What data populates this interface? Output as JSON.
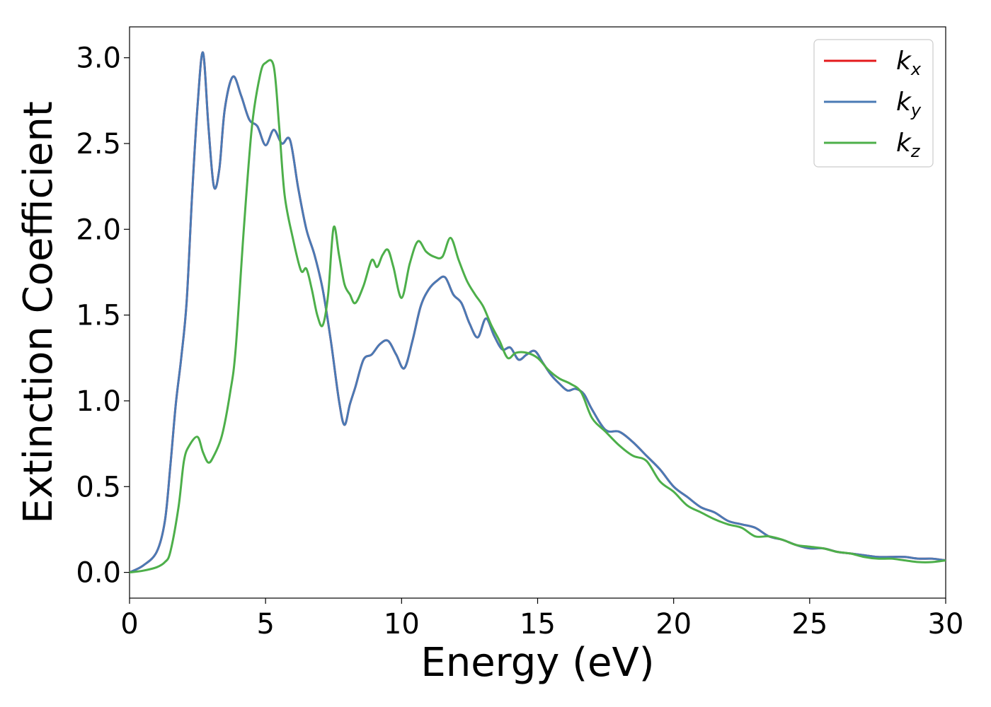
{
  "chart_data": {
    "type": "line",
    "title": "",
    "xlabel": "Energy (eV)",
    "ylabel": "Extinction Coefficient",
    "xlim": [
      0,
      30
    ],
    "ylim": [
      -0.15,
      3.18
    ],
    "xticks": [
      "0",
      "5",
      "10",
      "15",
      "20",
      "25",
      "30"
    ],
    "yticks": [
      "0.0",
      "0.5",
      "1.0",
      "1.5",
      "2.0",
      "2.5",
      "3.0"
    ],
    "grid": false,
    "legend_position": "top-right",
    "series": [
      {
        "name": "k",
        "subscript": "x",
        "color": "#e41a1c",
        "x": [
          0,
          0.5,
          1.0,
          1.3,
          1.5,
          1.7,
          1.9,
          2.1,
          2.3,
          2.5,
          2.7,
          2.9,
          3.1,
          3.3,
          3.5,
          3.8,
          4.1,
          4.4,
          4.7,
          5.0,
          5.3,
          5.6,
          5.9,
          6.2,
          6.5,
          6.8,
          7.1,
          7.4,
          7.7,
          7.9,
          8.1,
          8.3,
          8.6,
          8.9,
          9.2,
          9.5,
          9.8,
          10.1,
          10.4,
          10.7,
          11.0,
          11.3,
          11.6,
          11.9,
          12.2,
          12.5,
          12.8,
          13.1,
          13.4,
          13.7,
          14.0,
          14.3,
          14.6,
          14.9,
          15.2,
          15.5,
          15.8,
          16.1,
          16.4,
          16.7,
          17.0,
          17.5,
          18.0,
          18.5,
          19.0,
          19.5,
          20.0,
          20.5,
          21.0,
          21.5,
          22.0,
          22.5,
          23.0,
          23.5,
          24.0,
          24.5,
          25.0,
          25.5,
          26.0,
          26.5,
          27.0,
          27.5,
          28.0,
          28.5,
          29.0,
          29.5,
          30.0
        ],
        "values": [
          0.0,
          0.04,
          0.12,
          0.3,
          0.62,
          0.98,
          1.25,
          1.58,
          2.2,
          2.72,
          3.03,
          2.6,
          2.25,
          2.35,
          2.7,
          2.89,
          2.78,
          2.64,
          2.6,
          2.49,
          2.58,
          2.5,
          2.52,
          2.24,
          2.0,
          1.85,
          1.65,
          1.35,
          1.0,
          0.86,
          0.98,
          1.08,
          1.24,
          1.27,
          1.33,
          1.35,
          1.27,
          1.19,
          1.35,
          1.55,
          1.65,
          1.7,
          1.72,
          1.62,
          1.57,
          1.45,
          1.37,
          1.48,
          1.38,
          1.3,
          1.31,
          1.24,
          1.27,
          1.29,
          1.22,
          1.15,
          1.1,
          1.06,
          1.07,
          1.04,
          0.95,
          0.83,
          0.82,
          0.76,
          0.68,
          0.6,
          0.5,
          0.44,
          0.38,
          0.35,
          0.3,
          0.28,
          0.26,
          0.21,
          0.19,
          0.16,
          0.14,
          0.14,
          0.12,
          0.11,
          0.1,
          0.09,
          0.09,
          0.09,
          0.08,
          0.08,
          0.07
        ]
      },
      {
        "name": "k",
        "subscript": "y",
        "color": "#4a7ab5",
        "x": [
          0,
          0.5,
          1.0,
          1.3,
          1.5,
          1.7,
          1.9,
          2.1,
          2.3,
          2.5,
          2.7,
          2.9,
          3.1,
          3.3,
          3.5,
          3.8,
          4.1,
          4.4,
          4.7,
          5.0,
          5.3,
          5.6,
          5.9,
          6.2,
          6.5,
          6.8,
          7.1,
          7.4,
          7.7,
          7.9,
          8.1,
          8.3,
          8.6,
          8.9,
          9.2,
          9.5,
          9.8,
          10.1,
          10.4,
          10.7,
          11.0,
          11.3,
          11.6,
          11.9,
          12.2,
          12.5,
          12.8,
          13.1,
          13.4,
          13.7,
          14.0,
          14.3,
          14.6,
          14.9,
          15.2,
          15.5,
          15.8,
          16.1,
          16.4,
          16.7,
          17.0,
          17.5,
          18.0,
          18.5,
          19.0,
          19.5,
          20.0,
          20.5,
          21.0,
          21.5,
          22.0,
          22.5,
          23.0,
          23.5,
          24.0,
          24.5,
          25.0,
          25.5,
          26.0,
          26.5,
          27.0,
          27.5,
          28.0,
          28.5,
          29.0,
          29.5,
          30.0
        ],
        "values": [
          0.0,
          0.04,
          0.12,
          0.3,
          0.62,
          0.98,
          1.25,
          1.58,
          2.2,
          2.72,
          3.03,
          2.6,
          2.25,
          2.35,
          2.7,
          2.89,
          2.78,
          2.64,
          2.6,
          2.49,
          2.58,
          2.5,
          2.52,
          2.24,
          2.0,
          1.85,
          1.65,
          1.35,
          1.0,
          0.86,
          0.98,
          1.08,
          1.24,
          1.27,
          1.33,
          1.35,
          1.27,
          1.19,
          1.35,
          1.55,
          1.65,
          1.7,
          1.72,
          1.62,
          1.57,
          1.45,
          1.37,
          1.48,
          1.38,
          1.3,
          1.31,
          1.24,
          1.27,
          1.29,
          1.22,
          1.15,
          1.1,
          1.06,
          1.07,
          1.04,
          0.95,
          0.83,
          0.82,
          0.76,
          0.68,
          0.6,
          0.5,
          0.44,
          0.38,
          0.35,
          0.3,
          0.28,
          0.26,
          0.21,
          0.19,
          0.16,
          0.14,
          0.14,
          0.12,
          0.11,
          0.1,
          0.09,
          0.09,
          0.09,
          0.08,
          0.08,
          0.07
        ]
      },
      {
        "name": "k",
        "subscript": "z",
        "color": "#4daf4a",
        "x": [
          0,
          0.5,
          1.0,
          1.3,
          1.5,
          1.8,
          2.0,
          2.2,
          2.5,
          2.7,
          2.9,
          3.1,
          3.4,
          3.7,
          3.9,
          4.2,
          4.5,
          4.8,
          5.0,
          5.3,
          5.5,
          5.7,
          6.0,
          6.3,
          6.5,
          6.7,
          6.9,
          7.1,
          7.3,
          7.5,
          7.7,
          7.9,
          8.1,
          8.3,
          8.6,
          8.9,
          9.1,
          9.3,
          9.5,
          9.7,
          10.0,
          10.3,
          10.6,
          10.9,
          11.2,
          11.5,
          11.8,
          12.1,
          12.4,
          12.7,
          13.0,
          13.3,
          13.6,
          13.9,
          14.2,
          14.6,
          15.0,
          15.4,
          15.8,
          16.2,
          16.6,
          17.0,
          17.5,
          18.0,
          18.5,
          19.0,
          19.5,
          20.0,
          20.5,
          21.0,
          21.5,
          22.0,
          22.5,
          23.0,
          23.5,
          24.0,
          24.5,
          25.0,
          25.5,
          26.0,
          26.5,
          27.0,
          27.5,
          28.0,
          28.5,
          29.0,
          29.5,
          30.0
        ],
        "values": [
          0.0,
          0.01,
          0.03,
          0.06,
          0.12,
          0.38,
          0.65,
          0.74,
          0.79,
          0.7,
          0.64,
          0.68,
          0.8,
          1.05,
          1.3,
          2.0,
          2.6,
          2.9,
          2.97,
          2.95,
          2.6,
          2.2,
          1.95,
          1.76,
          1.77,
          1.65,
          1.5,
          1.44,
          1.62,
          2.01,
          1.85,
          1.68,
          1.62,
          1.57,
          1.67,
          1.82,
          1.78,
          1.85,
          1.88,
          1.78,
          1.6,
          1.8,
          1.93,
          1.87,
          1.84,
          1.84,
          1.95,
          1.82,
          1.7,
          1.62,
          1.55,
          1.44,
          1.35,
          1.25,
          1.28,
          1.28,
          1.25,
          1.18,
          1.13,
          1.1,
          1.05,
          0.9,
          0.82,
          0.74,
          0.68,
          0.65,
          0.53,
          0.47,
          0.39,
          0.35,
          0.31,
          0.28,
          0.26,
          0.21,
          0.21,
          0.19,
          0.16,
          0.15,
          0.14,
          0.12,
          0.11,
          0.09,
          0.08,
          0.08,
          0.07,
          0.06,
          0.06,
          0.07
        ]
      }
    ]
  }
}
